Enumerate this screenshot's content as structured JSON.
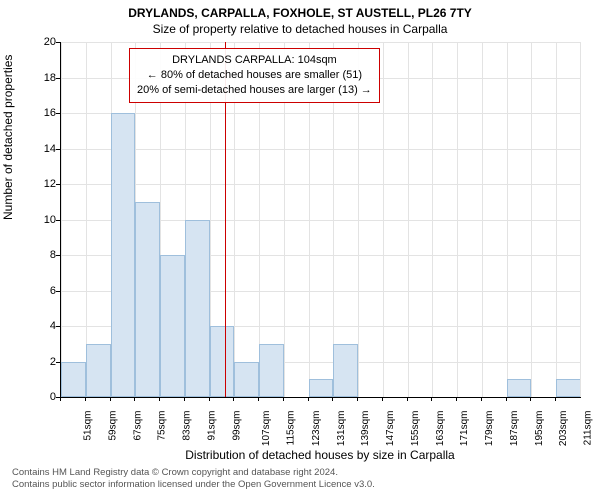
{
  "title_main": "DRYLANDS, CARPALLA, FOXHOLE, ST AUSTELL, PL26 7TY",
  "title_sub": "Size of property relative to detached houses in Carpalla",
  "ylabel": "Number of detached properties",
  "xlabel": "Distribution of detached houses by size in Carpalla",
  "footer_line1": "Contains HM Land Registry data © Crown copyright and database right 2024.",
  "footer_line2": "Contains public sector information licensed under the Open Government Licence v3.0.",
  "anno_l1": "DRYLANDS CARPALLA: 104sqm",
  "anno_l2": "← 80% of detached houses are smaller (51)",
  "anno_l3": "20% of semi-detached houses are larger (13) →",
  "chart": {
    "type": "histogram",
    "ylim": [
      0,
      20
    ],
    "ytick_step": 2,
    "x_start": 51,
    "x_step": 8,
    "x_bins": 21,
    "x_unit": "sqm",
    "values": [
      2,
      3,
      16,
      11,
      8,
      10,
      4,
      2,
      3,
      0,
      1,
      3,
      0,
      0,
      0,
      0,
      0,
      0,
      1,
      0,
      1
    ],
    "marker_value": 104,
    "bar_fill": "#d6e4f2",
    "bar_border": "#9fbfdc",
    "grid_color": "#e3e3e3",
    "marker_color": "#cc0000",
    "background": "#ffffff",
    "axis_color": "#000000",
    "title_fontsize": 12,
    "label_fontsize": 12,
    "tick_fontsize": 11,
    "xtick_fontsize": 10,
    "anno_fontsize": 11
  }
}
